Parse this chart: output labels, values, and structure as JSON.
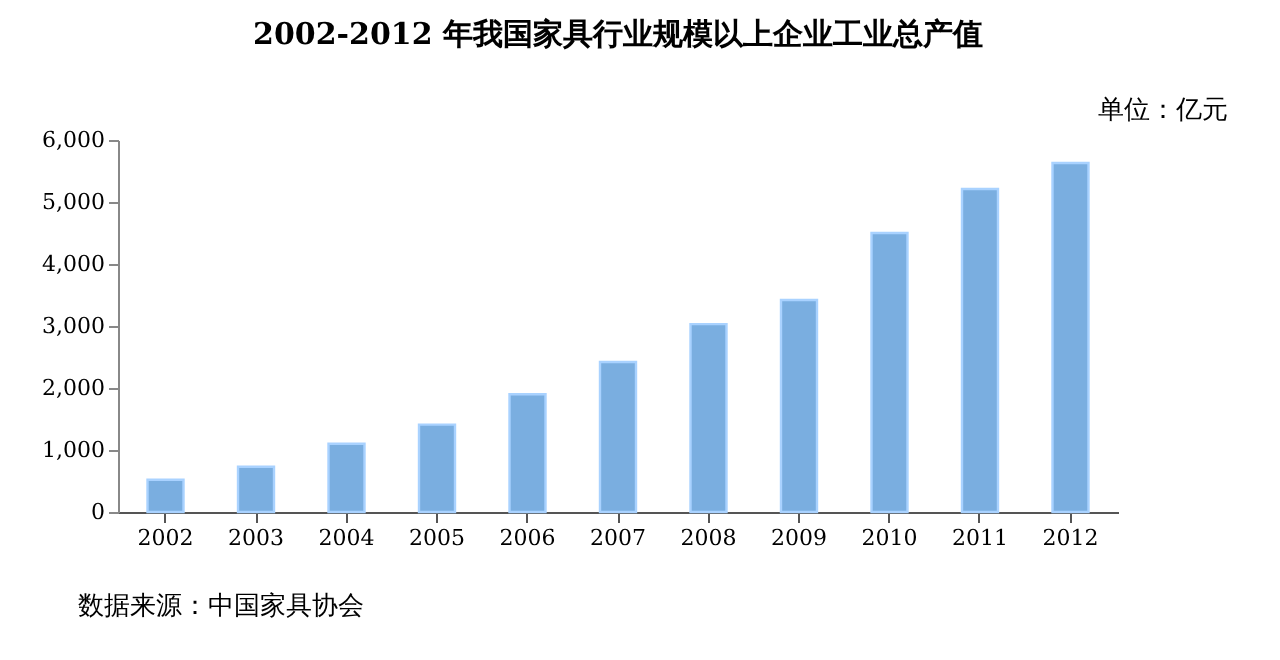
{
  "chart_data": {
    "type": "bar",
    "title": "2002-2012 年我国家具行业规模以上企业工业总产值",
    "categories": [
      "2002",
      "2003",
      "2004",
      "2005",
      "2006",
      "2007",
      "2008",
      "2009",
      "2010",
      "2011",
      "2012"
    ],
    "values": [
      520,
      730,
      1100,
      1410,
      1900,
      2420,
      3030,
      3420,
      4500,
      5210,
      5630
    ],
    "color": "#7aaee0",
    "ylim": [
      0,
      6000
    ],
    "yticks": [
      0,
      {
        "value": 1000,
        "label": "1,000"
      },
      {
        "value": 2000,
        "label": "2,000"
      },
      {
        "value": 3000,
        "label": "3,000"
      },
      {
        "value": 4000,
        "label": "4,000"
      },
      {
        "value": 5000,
        "label": "5,000"
      },
      {
        "value": 6000,
        "label": "6,000"
      }
    ],
    "grid": false,
    "annotations": [
      "单位：亿元",
      "数据来源：中国家具协会"
    ]
  }
}
